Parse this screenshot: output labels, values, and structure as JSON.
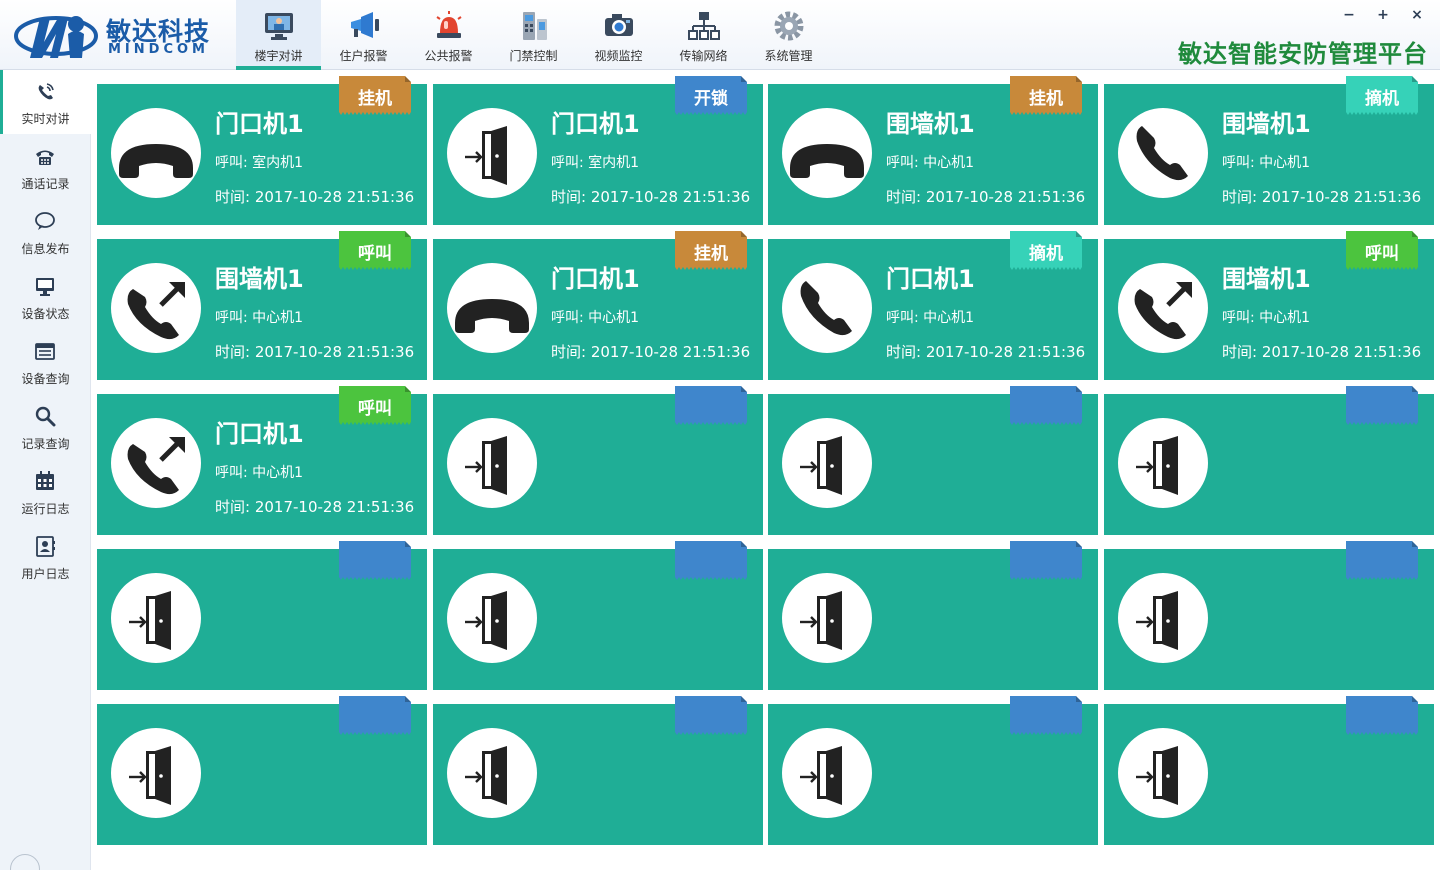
{
  "app": {
    "brand_cn": "敏达科技",
    "brand_en": "MINDCOM",
    "platform_title": "敏达智能安防管理平台"
  },
  "window_controls": {
    "minimize": "−",
    "maximize": "+",
    "close": "×"
  },
  "topnav": [
    {
      "label": "楼宇对讲",
      "icon": "intercom-monitor-icon",
      "active": true
    },
    {
      "label": "住户报警",
      "icon": "megaphone-icon",
      "active": false
    },
    {
      "label": "公共报警",
      "icon": "alarm-light-icon",
      "active": false
    },
    {
      "label": "门禁控制",
      "icon": "access-panel-icon",
      "active": false
    },
    {
      "label": "视频监控",
      "icon": "camera-icon",
      "active": false
    },
    {
      "label": "传输网络",
      "icon": "network-icon",
      "active": false
    },
    {
      "label": "系统管理",
      "icon": "gear-icon",
      "active": false
    }
  ],
  "sidebar": [
    {
      "label": "实时对讲",
      "icon": "ringing-phone-icon",
      "active": true
    },
    {
      "label": "通话记录",
      "icon": "telephone-icon",
      "active": false
    },
    {
      "label": "信息发布",
      "icon": "chat-bubble-icon",
      "active": false
    },
    {
      "label": "设备状态",
      "icon": "monitor-icon",
      "active": false
    },
    {
      "label": "设备查询",
      "icon": "list-icon",
      "active": false
    },
    {
      "label": "记录查询",
      "icon": "search-icon",
      "active": false
    },
    {
      "label": "运行日志",
      "icon": "calendar-icon",
      "active": false
    },
    {
      "label": "用户日志",
      "icon": "user-card-icon",
      "active": false
    }
  ],
  "colors": {
    "card_bg": "#1fae96",
    "tag_hangup": "#c8893a",
    "tag_unlock": "#3f86cc",
    "tag_pickup": "#36d2b8",
    "tag_call": "#4cc43e",
    "tag_empty": "#3f86cc"
  },
  "cards": [
    {
      "icon": "hangup",
      "title": "门口机1",
      "caller": "呼叫: 室内机1",
      "time": "时间: 2017-10-28 21:51:36",
      "tag": "挂机",
      "tag_type": "hangup"
    },
    {
      "icon": "door",
      "title": "门口机1",
      "caller": "呼叫: 室内机1",
      "time": "时间: 2017-10-28 21:51:36",
      "tag": "开锁",
      "tag_type": "unlock"
    },
    {
      "icon": "hangup",
      "title": "围墙机1",
      "caller": "呼叫: 中心机1",
      "time": "时间: 2017-10-28 21:51:36",
      "tag": "挂机",
      "tag_type": "hangup"
    },
    {
      "icon": "phone",
      "title": "围墙机1",
      "caller": "呼叫: 中心机1",
      "time": "时间: 2017-10-28 21:51:36",
      "tag": "摘机",
      "tag_type": "pickup"
    },
    {
      "icon": "outgoing",
      "title": "围墙机1",
      "caller": "呼叫: 中心机1",
      "time": "时间: 2017-10-28 21:51:36",
      "tag": "呼叫",
      "tag_type": "call"
    },
    {
      "icon": "hangup",
      "title": "门口机1",
      "caller": "呼叫: 中心机1",
      "time": "时间: 2017-10-28 21:51:36",
      "tag": "挂机",
      "tag_type": "hangup"
    },
    {
      "icon": "phone",
      "title": "门口机1",
      "caller": "呼叫: 中心机1",
      "time": "时间: 2017-10-28 21:51:36",
      "tag": "摘机",
      "tag_type": "pickup"
    },
    {
      "icon": "outgoing",
      "title": "围墙机1",
      "caller": "呼叫: 中心机1",
      "time": "时间: 2017-10-28 21:51:36",
      "tag": "呼叫",
      "tag_type": "call"
    },
    {
      "icon": "outgoing",
      "title": "门口机1",
      "caller": "呼叫: 中心机1",
      "time": "时间: 2017-10-28 21:51:36",
      "tag": "呼叫",
      "tag_type": "call"
    },
    {
      "icon": "door",
      "title": "",
      "caller": "",
      "time": "",
      "tag": "",
      "tag_type": "empty"
    },
    {
      "icon": "door",
      "title": "",
      "caller": "",
      "time": "",
      "tag": "",
      "tag_type": "empty"
    },
    {
      "icon": "door",
      "title": "",
      "caller": "",
      "time": "",
      "tag": "",
      "tag_type": "empty"
    },
    {
      "icon": "door",
      "title": "",
      "caller": "",
      "time": "",
      "tag": "",
      "tag_type": "empty"
    },
    {
      "icon": "door",
      "title": "",
      "caller": "",
      "time": "",
      "tag": "",
      "tag_type": "empty"
    },
    {
      "icon": "door",
      "title": "",
      "caller": "",
      "time": "",
      "tag": "",
      "tag_type": "empty"
    },
    {
      "icon": "door",
      "title": "",
      "caller": "",
      "time": "",
      "tag": "",
      "tag_type": "empty"
    },
    {
      "icon": "door",
      "title": "",
      "caller": "",
      "time": "",
      "tag": "",
      "tag_type": "empty"
    },
    {
      "icon": "door",
      "title": "",
      "caller": "",
      "time": "",
      "tag": "",
      "tag_type": "empty"
    },
    {
      "icon": "door",
      "title": "",
      "caller": "",
      "time": "",
      "tag": "",
      "tag_type": "empty"
    },
    {
      "icon": "door",
      "title": "",
      "caller": "",
      "time": "",
      "tag": "",
      "tag_type": "empty"
    }
  ]
}
